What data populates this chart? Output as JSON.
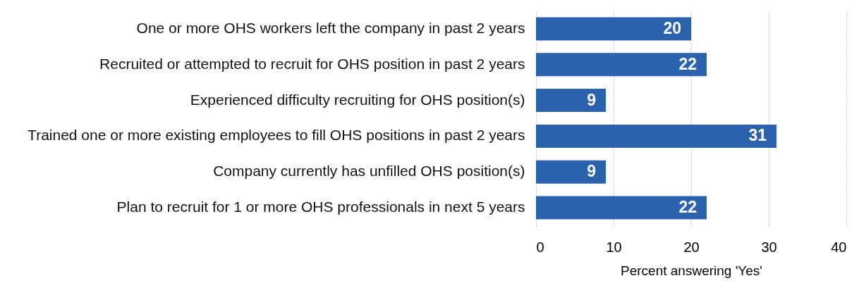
{
  "chart_data": {
    "type": "bar",
    "orientation": "horizontal",
    "xlabel": "Percent answering 'Yes'",
    "categories": [
      "One or more OHS workers left the company in past 2 years",
      "Recruited or attempted to recruit for OHS position in past 2 years",
      "Experienced difficulty recruiting for OHS position(s)",
      "Trained one or more existing employees to fill OHS positions in past 2 years",
      "Company currently has unfilled OHS position(s)",
      "Plan to recruit for 1 or more OHS professionals in next 5 years"
    ],
    "values": [
      20,
      22,
      9,
      31,
      9,
      22
    ],
    "color": "#2a62ad",
    "xlim": [
      0,
      40
    ],
    "xticks": [
      0,
      10,
      20,
      30,
      40
    ],
    "grid": true,
    "data_labels": true
  }
}
